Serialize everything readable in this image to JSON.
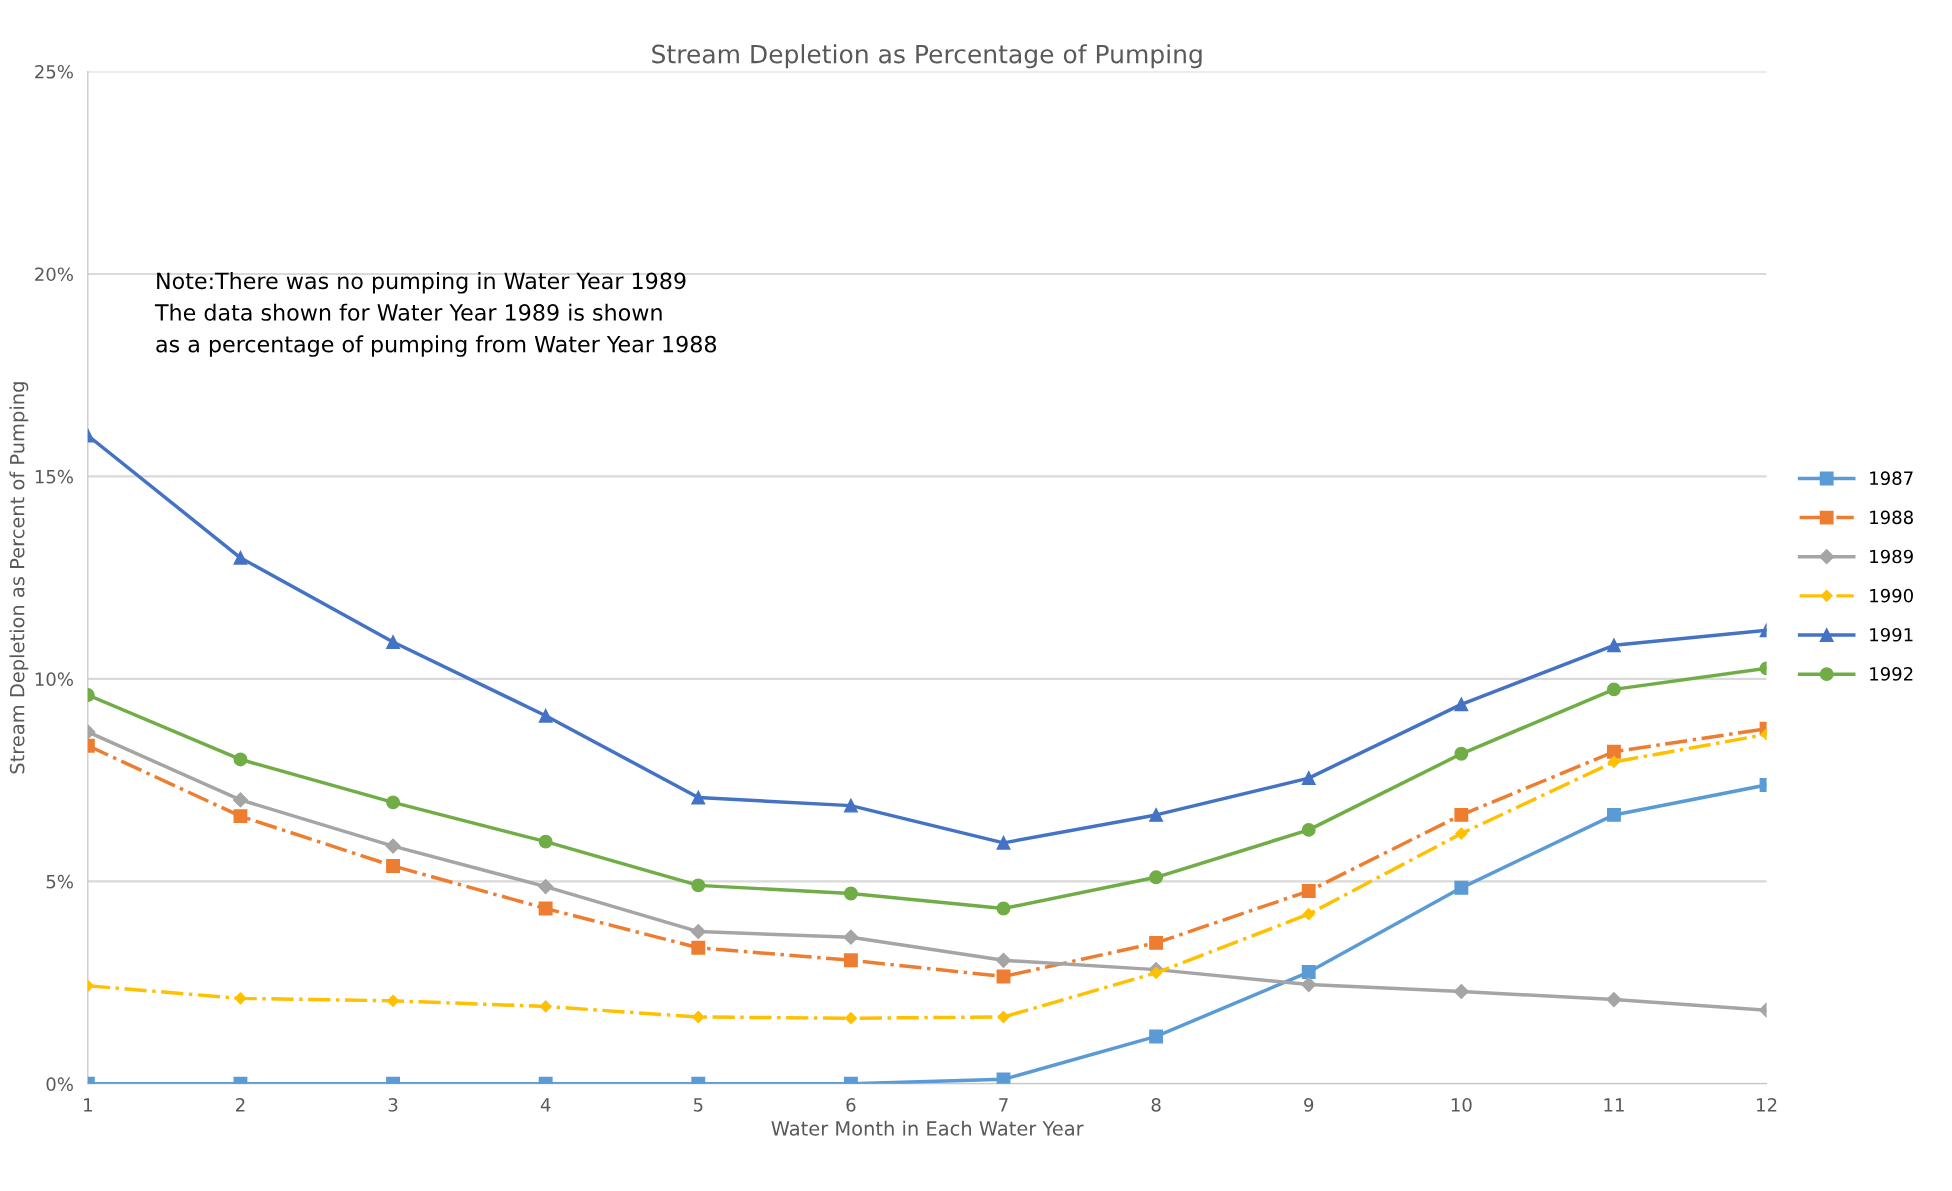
{
  "chart_data": {
    "type": "line",
    "title": "Stream Depletion as Percentage of Pumping",
    "xlabel": "Water Month in Each Water Year",
    "ylabel": "Stream Depletion as Percent of Pumping",
    "x": [
      1,
      2,
      3,
      4,
      5,
      6,
      7,
      8,
      9,
      10,
      11,
      12
    ],
    "series": [
      {
        "name": "1987",
        "color": "#5b9bd5",
        "marker": "square",
        "line_style": "solid",
        "values": [
          0,
          0,
          0,
          0,
          0,
          0,
          0.11,
          1.17,
          2.76,
          4.84,
          6.64,
          7.38
        ]
      },
      {
        "name": "1988",
        "color": "#ed7d31",
        "marker": "square",
        "line_style": "dashdot",
        "values": [
          8.35,
          6.61,
          5.38,
          4.33,
          3.36,
          3.05,
          2.65,
          3.48,
          4.76,
          6.64,
          8.2,
          8.77
        ]
      },
      {
        "name": "1989",
        "color": "#a5a5a5",
        "marker": "diamond",
        "line_style": "solid",
        "values": [
          8.69,
          7.01,
          5.87,
          4.87,
          3.76,
          3.62,
          3.05,
          2.82,
          2.45,
          2.28,
          2.08,
          1.82
        ]
      },
      {
        "name": "1990",
        "color": "#ffc000",
        "marker": "diamond",
        "line_style": "dashdot",
        "values": [
          2.42,
          2.11,
          2.05,
          1.91,
          1.65,
          1.62,
          1.65,
          2.74,
          4.19,
          6.18,
          7.95,
          8.63
        ]
      },
      {
        "name": "1991",
        "color": "#4472c4",
        "marker": "triangle",
        "line_style": "solid",
        "values": [
          16.01,
          12.99,
          10.91,
          9.09,
          7.07,
          6.87,
          5.95,
          6.64,
          7.55,
          9.37,
          10.83,
          11.2
        ]
      },
      {
        "name": "1992",
        "color": "#70ad47",
        "marker": "circle",
        "line_style": "solid",
        "values": [
          9.6,
          8.01,
          6.95,
          5.98,
          4.9,
          4.7,
          4.33,
          5.1,
          6.27,
          8.15,
          9.74,
          10.26
        ]
      }
    ],
    "xlim": [
      1,
      12
    ],
    "xticks": [
      1,
      2,
      3,
      4,
      5,
      6,
      7,
      8,
      9,
      10,
      11,
      12
    ],
    "ylim": [
      0,
      25
    ],
    "yticks": [
      {
        "value": 0,
        "label": "0%"
      },
      {
        "value": 5,
        "label": "5%"
      },
      {
        "value": 10,
        "label": "10%"
      },
      {
        "value": 15,
        "label": "15%"
      },
      {
        "value": 20,
        "label": "20%"
      },
      {
        "value": 25,
        "label": "25%"
      }
    ],
    "annotations": [
      "Note:There was no pumping in Water Year 1989\nThe data shown for Water Year 1989 is shown\nas a percentage of pumping from Water Year 1988"
    ],
    "grid": "y",
    "legend": "right"
  }
}
